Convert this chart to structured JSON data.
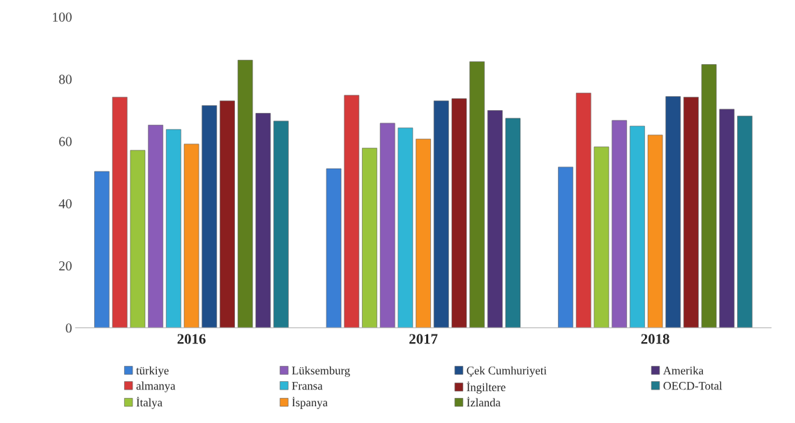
{
  "chart_data": {
    "type": "bar",
    "categories": [
      "2016",
      "2017",
      "2018"
    ],
    "series": [
      {
        "name": "türkiye",
        "color": "#3a7fd5",
        "values": [
          50.3,
          51.2,
          51.7
        ]
      },
      {
        "name": "almanya",
        "color": "#d63a3a",
        "values": [
          74.2,
          74.8,
          75.5
        ]
      },
      {
        "name": "İtalya",
        "color": "#9ac43c",
        "values": [
          57.1,
          57.8,
          58.2
        ]
      },
      {
        "name": "Lüksemburg",
        "color": "#8a5cb8",
        "values": [
          65.2,
          65.8,
          66.7
        ]
      },
      {
        "name": "Fransa",
        "color": "#2fb6d6",
        "values": [
          63.8,
          64.3,
          64.9
        ]
      },
      {
        "name": "İspanya",
        "color": "#f7901e",
        "values": [
          59.1,
          60.7,
          62.0
        ]
      },
      {
        "name": "Çek Cumhuriyeti",
        "color": "#1f4f8a",
        "values": [
          71.5,
          73.0,
          74.4
        ]
      },
      {
        "name": "İngiltere",
        "color": "#8b1f1f",
        "values": [
          73.0,
          73.7,
          74.2
        ]
      },
      {
        "name": "İzlanda",
        "color": "#5f7f1e",
        "values": [
          86.1,
          85.6,
          84.7
        ]
      },
      {
        "name": "Amerika",
        "color": "#4e3478",
        "values": [
          69.0,
          69.9,
          70.3
        ]
      },
      {
        "name": "OECD-Total",
        "color": "#1f7a8c",
        "values": [
          66.5,
          67.4,
          68.1
        ]
      }
    ],
    "ylim": [
      0,
      100
    ],
    "yticks": [
      0,
      20,
      40,
      60,
      80,
      100
    ],
    "grid": false,
    "legend": "bottom"
  }
}
